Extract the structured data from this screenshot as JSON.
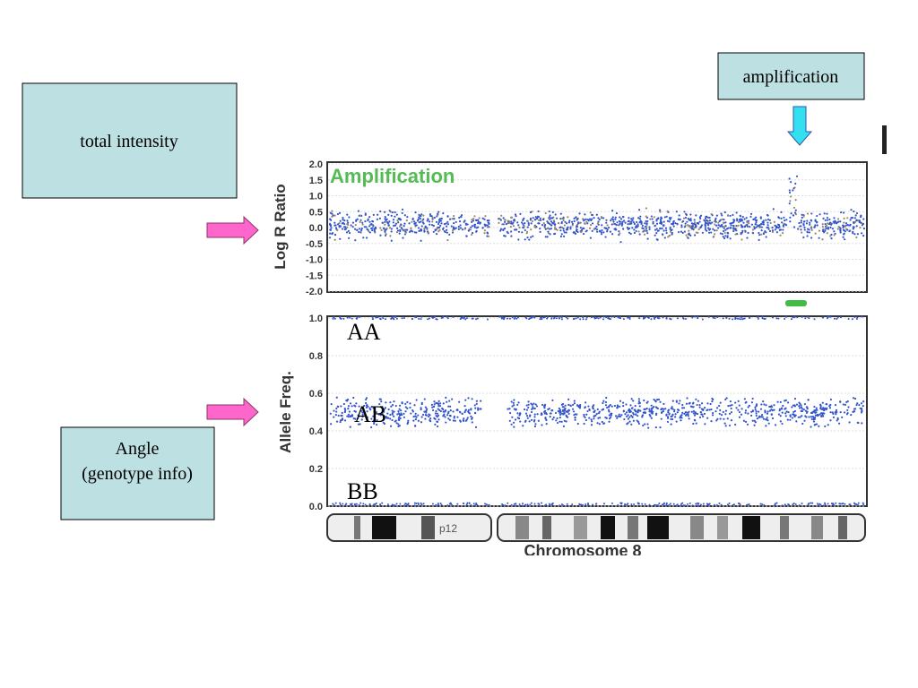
{
  "callouts": {
    "total_intensity": "total intensity",
    "amplification": "amplification",
    "angle": [
      "Angle",
      "(genotype info)"
    ]
  },
  "figure": {
    "log_r": {
      "axis_label": "Log R Ratio",
      "annotation": "Amplification",
      "ticks": [
        "2.0",
        "1.5",
        "1.0",
        "0.5",
        "0.0",
        "-0.5",
        "-1.0",
        "-1.5",
        "-2.0"
      ]
    },
    "allele": {
      "axis_label": "Allele Freq.",
      "ticks": [
        "1.0",
        "0.8",
        "0.6",
        "0.4",
        "0.2",
        "0.0"
      ],
      "genotypes": [
        "AA",
        "AB",
        "BB"
      ]
    },
    "ideogram": {
      "band": "p12",
      "title": "Chromosome 8"
    }
  }
}
